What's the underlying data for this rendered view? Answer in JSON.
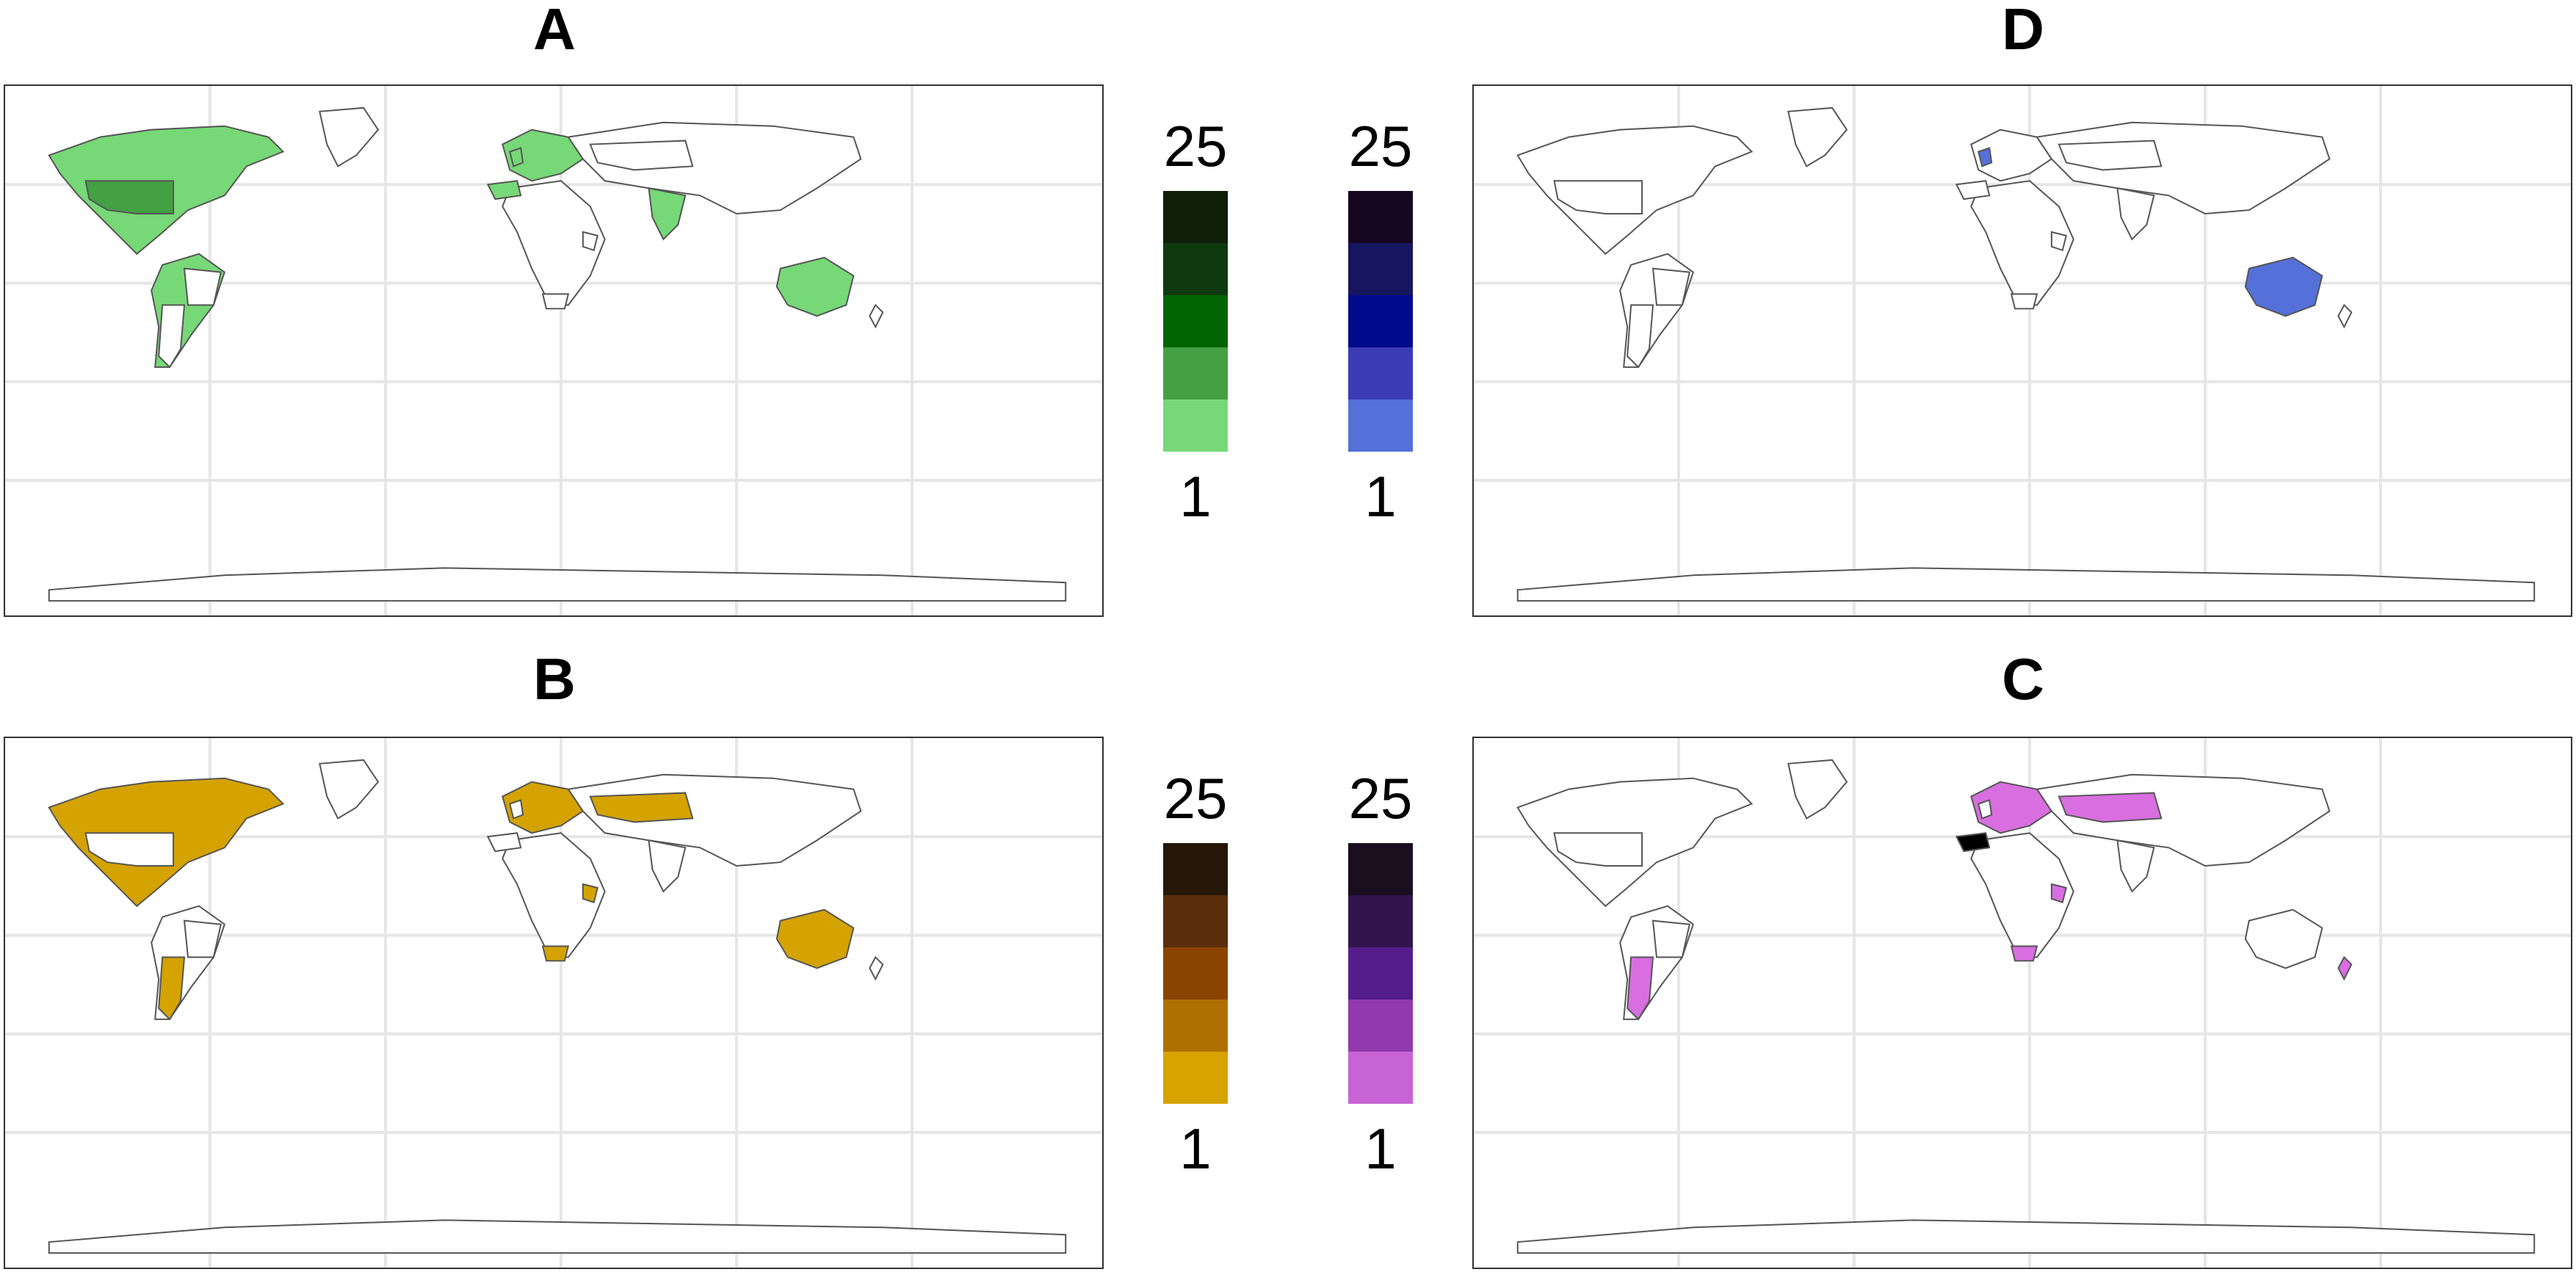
{
  "panels": {
    "A": {
      "letter": "A",
      "fill": "#77d877",
      "highlight": "#43a043"
    },
    "B": {
      "letter": "B",
      "fill": "#d4a300",
      "highlight": "#e0b300"
    },
    "C": {
      "letter": "C",
      "fill": "#d96ee0",
      "highlight": "#000000"
    },
    "D": {
      "letter": "D",
      "fill": "#5570d9",
      "highlight": "#5570d9"
    }
  },
  "legends": [
    {
      "id": "green",
      "max": "25",
      "min": "1",
      "colors": [
        "#0f1f0a",
        "#0f3a0f",
        "#006400",
        "#43a043",
        "#77d877"
      ]
    },
    {
      "id": "blue",
      "max": "25",
      "min": "1",
      "colors": [
        "#170621",
        "#161560",
        "#000a8a",
        "#3a3bb5",
        "#5570d9"
      ]
    },
    {
      "id": "gold",
      "max": "25",
      "min": "1",
      "colors": [
        "#251708",
        "#5a2e0c",
        "#8a4400",
        "#b07000",
        "#d8a200"
      ]
    },
    {
      "id": "purple",
      "max": "25",
      "min": "1",
      "colors": [
        "#1a0e1f",
        "#33154d",
        "#551d8c",
        "#9339ae",
        "#c863d6"
      ]
    }
  ]
}
